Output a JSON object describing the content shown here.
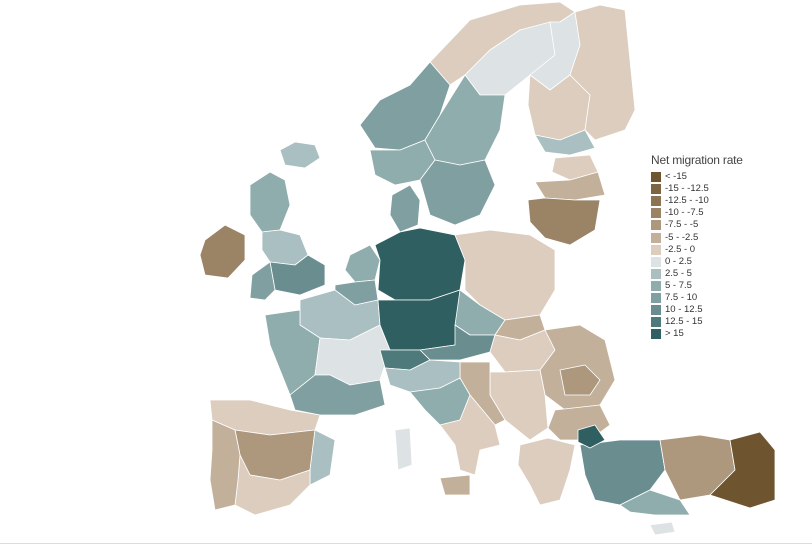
{
  "legend": {
    "title": "Net migration rate",
    "items": [
      {
        "label": "< -15",
        "color": "#6e5530"
      },
      {
        "label": "-15 - -12.5",
        "color": "#7d6442"
      },
      {
        "label": "-12.5 - -10",
        "color": "#8c7353"
      },
      {
        "label": "-10 - -7.5",
        "color": "#9b8466"
      },
      {
        "label": "-7.5 - -5",
        "color": "#ad977d"
      },
      {
        "label": "-5 - -2.5",
        "color": "#c3b09b"
      },
      {
        "label": "-2.5 - 0",
        "color": "#dccdbf"
      },
      {
        "label": "0 - 2.5",
        "color": "#dde2e4"
      },
      {
        "label": "2.5 - 5",
        "color": "#a9bfc1"
      },
      {
        "label": "5 - 7.5",
        "color": "#90adae"
      },
      {
        "label": "7.5 - 10",
        "color": "#7f9fa0"
      },
      {
        "label": "10 - 12.5",
        "color": "#6a8e90"
      },
      {
        "label": "12.5 - 15",
        "color": "#4e7a7c"
      },
      {
        "label": "> 15",
        "color": "#2f5f60"
      }
    ]
  },
  "regions": [
    {
      "name": "norway-north",
      "class": 6
    },
    {
      "name": "norway-west",
      "class": 10
    },
    {
      "name": "norway-south",
      "class": 9
    },
    {
      "name": "sweden-north",
      "class": 7
    },
    {
      "name": "sweden-central",
      "class": 9
    },
    {
      "name": "sweden-south",
      "class": 10
    },
    {
      "name": "finland-north",
      "class": 7
    },
    {
      "name": "finland-central",
      "class": 6
    },
    {
      "name": "finland-south",
      "class": 8
    },
    {
      "name": "russia-northwest",
      "class": 6
    },
    {
      "name": "estonia",
      "class": 6
    },
    {
      "name": "latvia",
      "class": 5
    },
    {
      "name": "lithuania",
      "class": 3
    },
    {
      "name": "iceland",
      "class": 8
    },
    {
      "name": "ireland",
      "class": 3
    },
    {
      "name": "uk-scotland",
      "class": 9
    },
    {
      "name": "uk-england-north",
      "class": 8
    },
    {
      "name": "uk-england-south",
      "class": 11
    },
    {
      "name": "uk-wales",
      "class": 10
    },
    {
      "name": "denmark",
      "class": 10
    },
    {
      "name": "netherlands",
      "class": 9
    },
    {
      "name": "belgium",
      "class": 10
    },
    {
      "name": "france-north",
      "class": 8
    },
    {
      "name": "france-west",
      "class": 9
    },
    {
      "name": "france-east",
      "class": 7
    },
    {
      "name": "france-south",
      "class": 10
    },
    {
      "name": "germany-north",
      "class": 13
    },
    {
      "name": "germany-south",
      "class": 13
    },
    {
      "name": "poland",
      "class": 6
    },
    {
      "name": "czechia",
      "class": 9
    },
    {
      "name": "slovakia",
      "class": 5
    },
    {
      "name": "austria",
      "class": 11
    },
    {
      "name": "switzerland",
      "class": 12
    },
    {
      "name": "hungary",
      "class": 6
    },
    {
      "name": "romania",
      "class": 5
    },
    {
      "name": "romania-central",
      "class": 4
    },
    {
      "name": "bulgaria",
      "class": 5
    },
    {
      "name": "balkans-west",
      "class": 6
    },
    {
      "name": "croatia-coast",
      "class": 5
    },
    {
      "name": "greece",
      "class": 6
    },
    {
      "name": "italy-north",
      "class": 8
    },
    {
      "name": "italy-central",
      "class": 9
    },
    {
      "name": "italy-south",
      "class": 6
    },
    {
      "name": "sardinia",
      "class": 7
    },
    {
      "name": "sicily",
      "class": 5
    },
    {
      "name": "spain-north",
      "class": 6
    },
    {
      "name": "spain-central",
      "class": 4
    },
    {
      "name": "spain-east",
      "class": 8
    },
    {
      "name": "spain-south",
      "class": 6
    },
    {
      "name": "portugal",
      "class": 5
    },
    {
      "name": "turkey-west",
      "class": 11
    },
    {
      "name": "turkey-istanbul",
      "class": 13
    },
    {
      "name": "turkey-central",
      "class": 4
    },
    {
      "name": "turkey-south",
      "class": 9
    },
    {
      "name": "turkey-east",
      "class": 0
    },
    {
      "name": "cyprus",
      "class": 7
    }
  ]
}
